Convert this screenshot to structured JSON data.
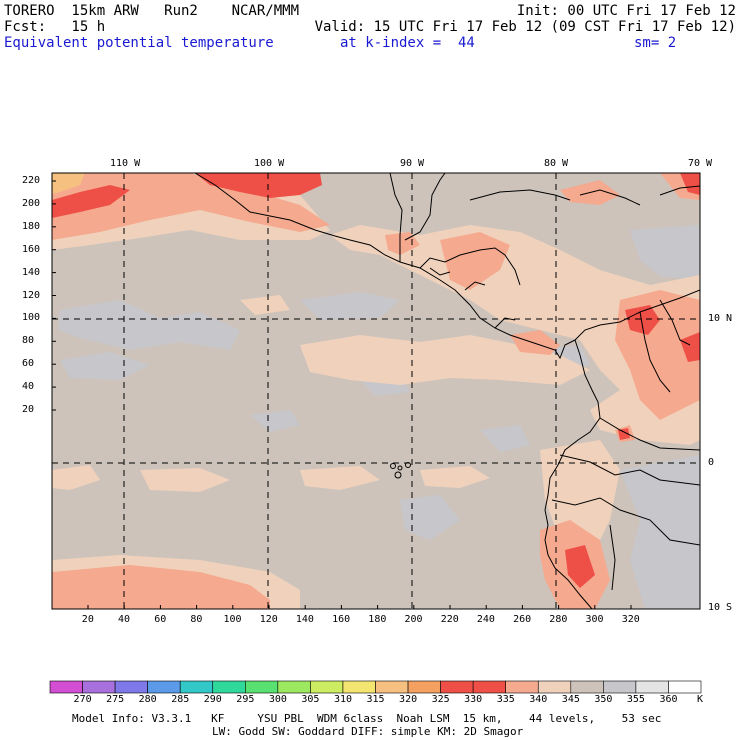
{
  "header": {
    "line1_left": "TORERO  15km ARW   Run2    NCAR/MMM",
    "line1_right": "Init: 00 UTC Fri 17 Feb 12",
    "line2_left": "Fcst:   15 h",
    "line2_right": "Valid: 15 UTC Fri 17 Feb 12 (09 CST Fri 17 Feb 12)",
    "line3_field": "Equivalent potential temperature",
    "line3_level": "at k-index =  44",
    "line3_smooth": "sm= 2"
  },
  "map": {
    "lon_labels": [
      "110 W",
      "100 W",
      "90 W",
      "80 W",
      "70 W"
    ],
    "lat_labels": [
      "10 N",
      "0",
      "10 S"
    ],
    "y_ticks": [
      "220",
      "200",
      "180",
      "160",
      "140",
      "120",
      "100",
      "80",
      "60",
      "40",
      "20"
    ],
    "x_ticks": [
      "20",
      "40",
      "60",
      "80",
      "100",
      "120",
      "140",
      "160",
      "180",
      "200",
      "220",
      "240",
      "260",
      "280",
      "300",
      "320"
    ],
    "colors": {
      "background": "#cdc3bb",
      "grey": "#c6c6cb",
      "warm": "#f0d2bc",
      "salmon": "#f5a98e",
      "red": "#ee5048",
      "orange": "#f6c080",
      "coast": "#000000"
    }
  },
  "colorbar": {
    "labels": [
      "270",
      "275",
      "280",
      "285",
      "290",
      "295",
      "300",
      "305",
      "310",
      "315",
      "320",
      "325",
      "330",
      "335",
      "340",
      "345",
      "350",
      "355",
      "360"
    ],
    "unit": "K",
    "colors": [
      "#d24ed2",
      "#a870dc",
      "#7f78e8",
      "#5a9ae8",
      "#32c8c8",
      "#30d89c",
      "#58e070",
      "#9ce860",
      "#cced62",
      "#f4e470",
      "#f6c080",
      "#f4a060",
      "#ee5048",
      "#ee5048",
      "#f5a98e",
      "#f0d2bc",
      "#cdc3bb",
      "#c6c6cb",
      "#e4e4e4",
      "#ffffff"
    ]
  },
  "footer": {
    "line1": "Model Info: V3.3.1   KF     YSU PBL  WDM 6class  Noah LSM  15 km,    44 levels,    53 sec",
    "line2": "LW: Godd SW: Goddard DIFF: simple KM: 2D Smagor"
  }
}
